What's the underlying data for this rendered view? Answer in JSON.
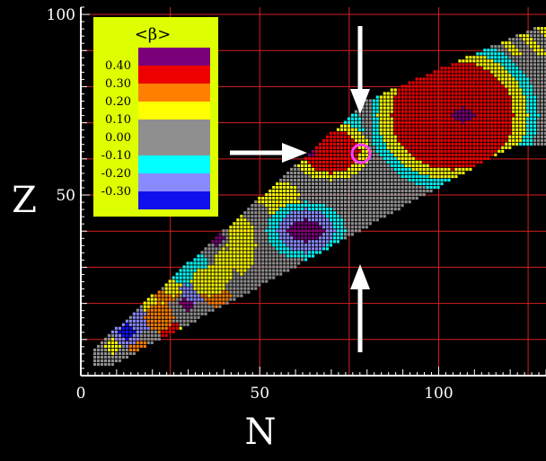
{
  "chart_data": {
    "type": "heatmap",
    "xlabel": "N",
    "ylabel": "Z",
    "xlim": [
      0,
      130
    ],
    "ylim": [
      0,
      102
    ],
    "x_ticks": [
      {
        "value": 0,
        "label": "0"
      },
      {
        "value": 50,
        "label": "50"
      },
      {
        "value": 100,
        "label": "100"
      }
    ],
    "y_ticks": [
      {
        "value": 50,
        "label": "50"
      },
      {
        "value": 100,
        "label": "100"
      }
    ],
    "grid": true,
    "grid_color": "#d42020",
    "legend": {
      "title": "<β>",
      "placement": "top-left",
      "background": "#ddff00",
      "entries": [
        {
          "label": "",
          "color": "#7a007a"
        },
        {
          "label": "0.40",
          "color": "#ee0000"
        },
        {
          "label": "0.30",
          "color": "#ff8000"
        },
        {
          "label": "0.20",
          "color": "#ffff00"
        },
        {
          "label": "0.10",
          "color": "#8f8f8f"
        },
        {
          "label": "0.00",
          "color": "#8f8f8f"
        },
        {
          "label": "-0.10",
          "color": "#00ffff"
        },
        {
          "label": "-0.20",
          "color": "#8a8aff"
        },
        {
          "label": "-0.30",
          "color": "#1010ee"
        }
      ]
    },
    "annotations": [
      {
        "type": "arrow",
        "direction": "down",
        "at": [
          78,
          73
        ]
      },
      {
        "type": "arrow",
        "direction": "right",
        "at": [
          63,
          62
        ]
      },
      {
        "type": "arrow",
        "direction": "up",
        "at": [
          78,
          33
        ]
      },
      {
        "type": "circle",
        "color": "#ff40ff",
        "at": [
          78,
          62
        ]
      }
    ],
    "regions": [
      {
        "value": -0.3,
        "color": "#1010ee",
        "x": [
          12,
          13
        ],
        "y": [
          10,
          12
        ]
      },
      {
        "value": 0.0,
        "color": "#8f8f8f",
        "note": "nuclear chart band"
      }
    ]
  }
}
